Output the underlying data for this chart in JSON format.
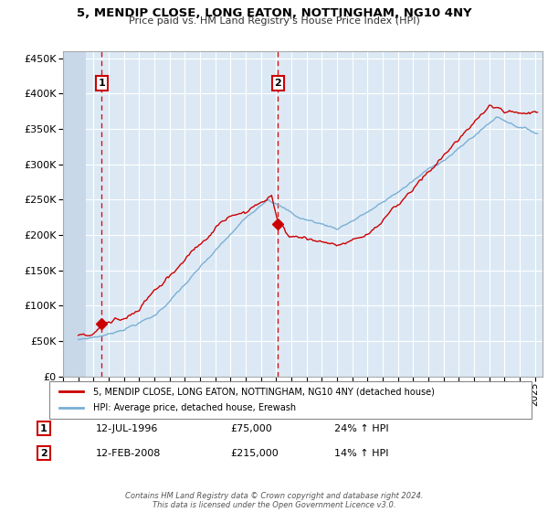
{
  "title": "5, MENDIP CLOSE, LONG EATON, NOTTINGHAM, NG10 4NY",
  "subtitle": "Price paid vs. HM Land Registry's House Price Index (HPI)",
  "ylim": [
    0,
    460000
  ],
  "yticks": [
    0,
    50000,
    100000,
    150000,
    200000,
    250000,
    300000,
    350000,
    400000,
    450000
  ],
  "xlim_start": 1994.0,
  "xlim_end": 2025.5,
  "red_color": "#cc0000",
  "blue_color": "#7bafd4",
  "shade_color": "#dce9f5",
  "sale1_x": 1996.53,
  "sale1_y": 75000,
  "sale2_x": 2008.12,
  "sale2_y": 215000,
  "legend_line1": "5, MENDIP CLOSE, LONG EATON, NOTTINGHAM, NG10 4NY (detached house)",
  "legend_line2": "HPI: Average price, detached house, Erewash",
  "sale1_date": "12-JUL-1996",
  "sale1_price": "£75,000",
  "sale1_hpi": "24% ↑ HPI",
  "sale2_date": "12-FEB-2008",
  "sale2_price": "£215,000",
  "sale2_hpi": "14% ↑ HPI",
  "footer": "Contains HM Land Registry data © Crown copyright and database right 2024.\nThis data is licensed under the Open Government Licence v3.0."
}
